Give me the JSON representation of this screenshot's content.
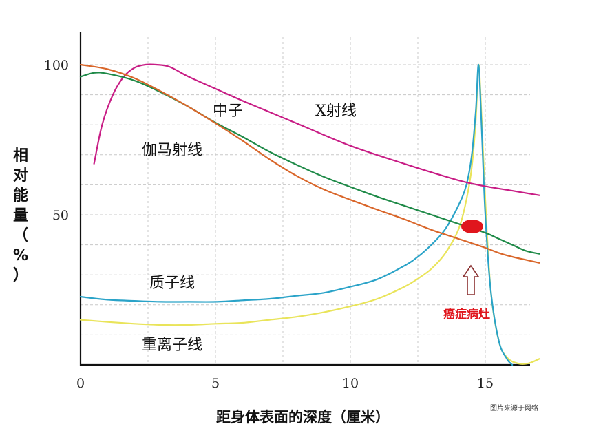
{
  "chart_data": {
    "type": "line",
    "title": "",
    "xlabel": "距身体表面的深度（厘米）",
    "ylabel": "相对能量（%）",
    "xlim": [
      0,
      17
    ],
    "ylim": [
      0,
      110
    ],
    "x_ticks": [
      "0",
      "5",
      "10",
      "15"
    ],
    "y_ticks": [
      "50",
      "100"
    ],
    "grid": true,
    "series": [
      {
        "name": "X射线",
        "color": "#c81d85",
        "x": [
          0.5,
          0.8,
          1.2,
          1.6,
          2.0,
          2.4,
          2.8,
          3.3,
          4,
          5,
          6,
          8,
          10,
          12,
          14,
          15,
          16,
          17
        ],
        "y": [
          67,
          80,
          90,
          96,
          99,
          100,
          100,
          99.3,
          96,
          92,
          88,
          80.5,
          73,
          67,
          61.5,
          59.5,
          58,
          56.5
        ]
      },
      {
        "name": "中子",
        "color": "#d9662a",
        "x": [
          0,
          1,
          2,
          3,
          4,
          5,
          6,
          7,
          8,
          9,
          10,
          11,
          12,
          13,
          14,
          15,
          15.5,
          16,
          16.5,
          17
        ],
        "y": [
          100,
          98.5,
          95.5,
          91,
          86,
          80.5,
          74.7,
          68.5,
          63,
          58.5,
          55,
          51.7,
          48.5,
          45,
          42,
          39,
          37.3,
          36,
          35,
          34
        ]
      },
      {
        "name": "伽马射线",
        "color": "#1f8a48",
        "x": [
          0,
          0.5,
          1,
          2,
          3,
          4,
          5,
          6,
          7,
          8,
          9,
          10,
          11,
          12,
          13,
          14,
          15,
          15.5,
          16,
          16.5,
          17
        ],
        "y": [
          96,
          97.3,
          97,
          94.7,
          90.7,
          86,
          80.7,
          76,
          71,
          66.7,
          62.7,
          59.3,
          56,
          53,
          50,
          47,
          44,
          42,
          40,
          38,
          37
        ]
      },
      {
        "name": "质子线",
        "color": "#2aa3c8",
        "x": [
          0,
          1,
          2,
          3,
          4,
          5,
          6,
          7,
          8,
          9,
          10,
          11,
          12,
          12.5,
          13,
          13.5,
          14,
          14.3,
          14.5,
          14.65,
          14.75,
          14.85,
          15,
          15.2,
          15.5,
          15.8,
          16
        ],
        "y": [
          22.7,
          21.7,
          21.3,
          21,
          21,
          21,
          21.5,
          22,
          23,
          24,
          26,
          28.5,
          33,
          36,
          40,
          45,
          53,
          60,
          70,
          85,
          100,
          82,
          50,
          25,
          8,
          2,
          0
        ]
      },
      {
        "name": "重离子线",
        "color": "#e9e45a",
        "x": [
          0,
          1,
          2,
          3,
          4,
          5,
          6,
          7,
          8,
          9,
          10,
          11,
          12,
          12.5,
          13,
          13.5,
          14,
          14.3,
          14.5,
          14.65,
          14.75,
          14.85,
          15,
          15.2,
          15.5,
          15.8,
          16.2,
          16.6,
          17
        ],
        "y": [
          15,
          14.3,
          13.7,
          13.3,
          13.3,
          13.7,
          14,
          15,
          16,
          17.5,
          19.5,
          22,
          26,
          28.7,
          32,
          37,
          45,
          55,
          66,
          82,
          100,
          85,
          55,
          25,
          8,
          2.5,
          0.5,
          0.5,
          2
        ]
      }
    ]
  },
  "labels": {
    "xray": "X射线",
    "neutron": "中子",
    "gamma": "伽马射线",
    "proton": "质子线",
    "heavy_ion": "重离子线",
    "tumor": "癌症病灶"
  },
  "colors": {
    "tumor": "#e0161d",
    "arrow": "#8a3030",
    "grid": "#c8c8c8",
    "axis": "#111111"
  },
  "axis_labels": {
    "ylabel_chars": [
      "相",
      "对",
      "能",
      "量",
      "（",
      "%",
      "）"
    ],
    "xlabel": "距身体表面的深度（厘米）"
  },
  "source_text": "图片来源于网络"
}
